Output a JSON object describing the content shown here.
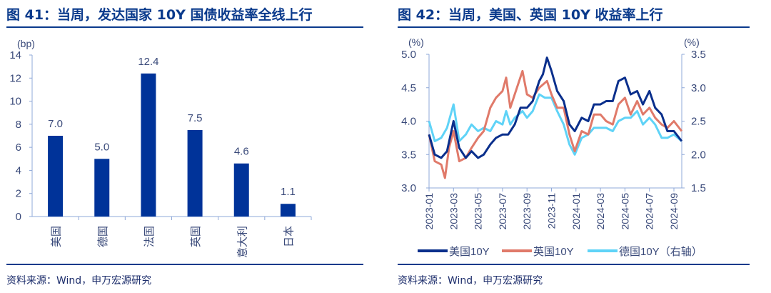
{
  "panels": [
    {
      "title": "图 41：当周，发达国家 10Y 国债收益率全线上行",
      "source": "资料来源：Wind，申万宏源研究"
    },
    {
      "title": "图 42：当周，美国、英国 10Y 收益率上行",
      "source": "资料来源：Wind，申万宏源研究"
    }
  ],
  "colors": {
    "title": "#0a3a8c",
    "bar": "#003399",
    "us": "#0a2f8c",
    "uk": "#e07a6a",
    "de": "#5fd3f7",
    "axis": "#8fa8d8"
  },
  "chart_data": [
    {
      "type": "bar",
      "ylabel": "(bp)",
      "ylim": [
        0,
        14
      ],
      "yticks": [
        0,
        2,
        4,
        6,
        8,
        10,
        12,
        14
      ],
      "categories": [
        "美国",
        "德国",
        "法国",
        "英国",
        "意大利",
        "日本"
      ],
      "values": [
        7.0,
        5.0,
        12.4,
        7.5,
        4.6,
        1.1
      ],
      "data_labels": [
        "7.0",
        "5.0",
        "12.4",
        "7.5",
        "4.6",
        "1.1"
      ]
    },
    {
      "type": "line",
      "ylabel_left": "(%)",
      "ylabel_right": "(%)",
      "ylim_left": [
        3.0,
        5.0
      ],
      "yticks_left": [
        "3.0",
        "3.5",
        "4.0",
        "4.5",
        "5.0"
      ],
      "ylim_right": [
        1.5,
        3.5
      ],
      "yticks_right": [
        "1.5",
        "2.0",
        "2.5",
        "3.0",
        "3.5"
      ],
      "xticks": [
        "2023-01",
        "2023-03",
        "2023-05",
        "2023-07",
        "2023-09",
        "2023-11",
        "2024-01",
        "2024-03",
        "2024-05",
        "2024-07",
        "2024-09"
      ],
      "series": [
        {
          "name": "美国10Y",
          "axis": "left",
          "color": "#0a2f8c",
          "points": [
            [
              "2023-01-01",
              3.8
            ],
            [
              "2023-01-15",
              3.5
            ],
            [
              "2023-02-01",
              3.45
            ],
            [
              "2023-02-15",
              3.55
            ],
            [
              "2023-03-01",
              4.0
            ],
            [
              "2023-03-15",
              3.6
            ],
            [
              "2023-04-01",
              3.45
            ],
            [
              "2023-04-15",
              3.55
            ],
            [
              "2023-05-01",
              3.45
            ],
            [
              "2023-05-15",
              3.5
            ],
            [
              "2023-06-01",
              3.65
            ],
            [
              "2023-06-15",
              3.75
            ],
            [
              "2023-07-01",
              3.8
            ],
            [
              "2023-07-15",
              3.8
            ],
            [
              "2023-08-01",
              3.95
            ],
            [
              "2023-08-15",
              4.2
            ],
            [
              "2023-09-01",
              4.2
            ],
            [
              "2023-09-15",
              4.3
            ],
            [
              "2023-10-01",
              4.6
            ],
            [
              "2023-10-10",
              4.7
            ],
            [
              "2023-10-20",
              4.95
            ],
            [
              "2023-11-01",
              4.75
            ],
            [
              "2023-11-15",
              4.45
            ],
            [
              "2023-12-01",
              4.3
            ],
            [
              "2023-12-15",
              3.95
            ],
            [
              "2023-12-28",
              3.85
            ],
            [
              "2024-01-15",
              4.05
            ],
            [
              "2024-02-01",
              4.0
            ],
            [
              "2024-02-15",
              4.25
            ],
            [
              "2024-03-01",
              4.25
            ],
            [
              "2024-03-15",
              4.3
            ],
            [
              "2024-04-01",
              4.3
            ],
            [
              "2024-04-15",
              4.6
            ],
            [
              "2024-05-01",
              4.65
            ],
            [
              "2024-05-15",
              4.4
            ],
            [
              "2024-06-01",
              4.45
            ],
            [
              "2024-06-15",
              4.25
            ],
            [
              "2024-07-01",
              4.45
            ],
            [
              "2024-07-15",
              4.2
            ],
            [
              "2024-08-01",
              4.1
            ],
            [
              "2024-08-15",
              3.85
            ],
            [
              "2024-09-01",
              3.85
            ],
            [
              "2024-09-20",
              3.7
            ]
          ]
        },
        {
          "name": "英国10Y",
          "axis": "left",
          "color": "#e07a6a",
          "points": [
            [
              "2023-01-01",
              3.8
            ],
            [
              "2023-01-15",
              3.4
            ],
            [
              "2023-02-01",
              3.35
            ],
            [
              "2023-02-10",
              3.15
            ],
            [
              "2023-02-20",
              3.6
            ],
            [
              "2023-03-01",
              3.85
            ],
            [
              "2023-03-15",
              3.4
            ],
            [
              "2023-04-01",
              3.45
            ],
            [
              "2023-04-15",
              3.6
            ],
            [
              "2023-05-01",
              3.75
            ],
            [
              "2023-05-15",
              3.85
            ],
            [
              "2023-06-01",
              4.2
            ],
            [
              "2023-06-15",
              4.35
            ],
            [
              "2023-07-01",
              4.45
            ],
            [
              "2023-07-10",
              4.65
            ],
            [
              "2023-07-20",
              4.2
            ],
            [
              "2023-08-01",
              4.4
            ],
            [
              "2023-08-20",
              4.75
            ],
            [
              "2023-09-01",
              4.4
            ],
            [
              "2023-09-15",
              4.35
            ],
            [
              "2023-10-01",
              4.5
            ],
            [
              "2023-10-20",
              4.6
            ],
            [
              "2023-11-01",
              4.4
            ],
            [
              "2023-11-15",
              4.2
            ],
            [
              "2023-12-01",
              4.2
            ],
            [
              "2023-12-15",
              3.8
            ],
            [
              "2023-12-28",
              3.55
            ],
            [
              "2024-01-15",
              3.85
            ],
            [
              "2024-02-01",
              3.8
            ],
            [
              "2024-02-15",
              4.1
            ],
            [
              "2024-03-01",
              4.1
            ],
            [
              "2024-03-15",
              4.0
            ],
            [
              "2024-04-01",
              3.95
            ],
            [
              "2024-04-15",
              4.25
            ],
            [
              "2024-05-01",
              4.35
            ],
            [
              "2024-05-15",
              4.1
            ],
            [
              "2024-06-01",
              4.3
            ],
            [
              "2024-06-15",
              4.1
            ],
            [
              "2024-07-01",
              4.2
            ],
            [
              "2024-07-15",
              4.05
            ],
            [
              "2024-08-01",
              3.95
            ],
            [
              "2024-08-15",
              3.9
            ],
            [
              "2024-09-01",
              4.0
            ],
            [
              "2024-09-20",
              3.85
            ]
          ]
        },
        {
          "name": "德国10Y（右轴）",
          "axis": "right",
          "color": "#5fd3f7",
          "points": [
            [
              "2023-01-01",
              2.5
            ],
            [
              "2023-01-15",
              2.2
            ],
            [
              "2023-02-01",
              2.25
            ],
            [
              "2023-02-15",
              2.4
            ],
            [
              "2023-03-01",
              2.75
            ],
            [
              "2023-03-15",
              2.2
            ],
            [
              "2023-04-01",
              2.3
            ],
            [
              "2023-04-15",
              2.45
            ],
            [
              "2023-05-01",
              2.35
            ],
            [
              "2023-05-15",
              2.4
            ],
            [
              "2023-06-01",
              2.35
            ],
            [
              "2023-06-15",
              2.5
            ],
            [
              "2023-07-01",
              2.45
            ],
            [
              "2023-07-10",
              2.65
            ],
            [
              "2023-07-20",
              2.45
            ],
            [
              "2023-08-01",
              2.55
            ],
            [
              "2023-08-20",
              2.65
            ],
            [
              "2023-09-01",
              2.55
            ],
            [
              "2023-09-15",
              2.65
            ],
            [
              "2023-10-01",
              2.9
            ],
            [
              "2023-10-15",
              2.85
            ],
            [
              "2023-11-01",
              2.85
            ],
            [
              "2023-11-15",
              2.65
            ],
            [
              "2023-12-01",
              2.45
            ],
            [
              "2023-12-15",
              2.15
            ],
            [
              "2023-12-28",
              2.0
            ],
            [
              "2024-01-15",
              2.25
            ],
            [
              "2024-02-01",
              2.3
            ],
            [
              "2024-02-15",
              2.4
            ],
            [
              "2024-03-01",
              2.4
            ],
            [
              "2024-03-15",
              2.4
            ],
            [
              "2024-04-01",
              2.35
            ],
            [
              "2024-04-15",
              2.5
            ],
            [
              "2024-05-01",
              2.55
            ],
            [
              "2024-05-15",
              2.55
            ],
            [
              "2024-06-01",
              2.65
            ],
            [
              "2024-06-15",
              2.45
            ],
            [
              "2024-07-01",
              2.55
            ],
            [
              "2024-07-15",
              2.45
            ],
            [
              "2024-08-01",
              2.25
            ],
            [
              "2024-08-15",
              2.25
            ],
            [
              "2024-09-01",
              2.3
            ],
            [
              "2024-09-20",
              2.2
            ]
          ]
        }
      ],
      "legend_position": "bottom"
    }
  ]
}
